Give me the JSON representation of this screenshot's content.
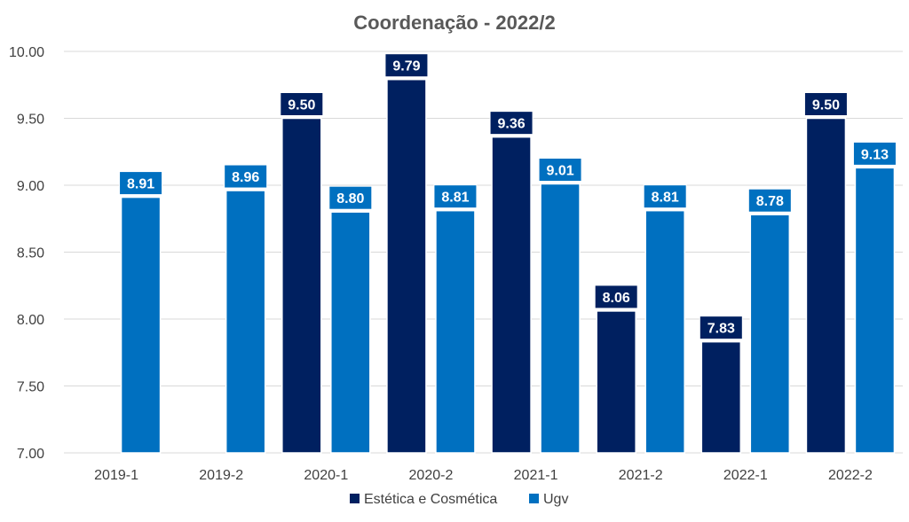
{
  "chart_data": {
    "type": "bar",
    "title": "Coordenação - 2022/2",
    "xlabel": "",
    "ylabel": "",
    "categories": [
      "2019-1",
      "2019-2",
      "2020-1",
      "2020-2",
      "2021-1",
      "2021-2",
      "2022-1",
      "2022-2"
    ],
    "series": [
      {
        "name": "Estética e Cosmética",
        "color": "#002060",
        "values": [
          null,
          null,
          9.5,
          9.79,
          9.36,
          8.06,
          7.83,
          9.5
        ]
      },
      {
        "name": "Ugv",
        "color": "#0070C0",
        "values": [
          8.91,
          8.96,
          8.8,
          8.81,
          9.01,
          8.81,
          8.78,
          9.13
        ]
      }
    ],
    "ylim": [
      7.0,
      10.0
    ],
    "yticks": [
      "7.00",
      "7.50",
      "8.00",
      "8.50",
      "9.00",
      "9.50",
      "10.00"
    ],
    "grid": true,
    "legend": "bottom",
    "value_format": 2
  }
}
